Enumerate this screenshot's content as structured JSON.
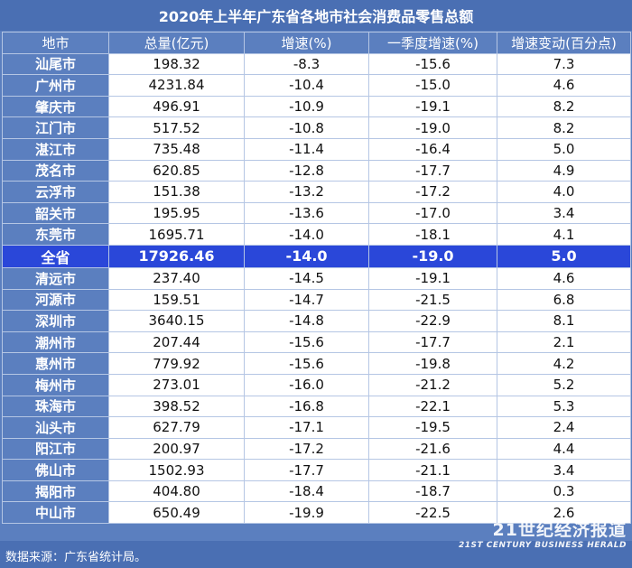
{
  "title": "2020年上半年广东省各地市社会消费品零售总额",
  "columns": [
    "地市",
    "总量(亿元)",
    "增速(%)",
    "一季度增速(%)",
    "增速变动(百分点)"
  ],
  "rows": [
    [
      "汕尾市",
      "198.32",
      "-8.3",
      "-15.6",
      "7.3"
    ],
    [
      "广州市",
      "4231.84",
      "-10.4",
      "-15.0",
      "4.6"
    ],
    [
      "肇庆市",
      "496.91",
      "-10.9",
      "-19.1",
      "8.2"
    ],
    [
      "江门市",
      "517.52",
      "-10.8",
      "-19.0",
      "8.2"
    ],
    [
      "湛江市",
      "735.48",
      "-11.4",
      "-16.4",
      "5.0"
    ],
    [
      "茂名市",
      "620.85",
      "-12.8",
      "-17.7",
      "4.9"
    ],
    [
      "云浮市",
      "151.38",
      "-13.2",
      "-17.2",
      "4.0"
    ],
    [
      "韶关市",
      "195.95",
      "-13.6",
      "-17.0",
      "3.4"
    ],
    [
      "东莞市",
      "1695.71",
      "-14.0",
      "-18.1",
      "4.1"
    ],
    [
      "全省",
      "17926.46",
      "-14.0",
      "-19.0",
      "5.0"
    ],
    [
      "清远市",
      "237.40",
      "-14.5",
      "-19.1",
      "4.6"
    ],
    [
      "河源市",
      "159.51",
      "-14.7",
      "-21.5",
      "6.8"
    ],
    [
      "深圳市",
      "3640.15",
      "-14.8",
      "-22.9",
      "8.1"
    ],
    [
      "潮州市",
      "207.44",
      "-15.6",
      "-17.7",
      "2.1"
    ],
    [
      "惠州市",
      "779.92",
      "-15.6",
      "-19.8",
      "4.2"
    ],
    [
      "梅州市",
      "273.01",
      "-16.0",
      "-21.2",
      "5.2"
    ],
    [
      "珠海市",
      "398.52",
      "-16.8",
      "-22.1",
      "5.3"
    ],
    [
      "汕头市",
      "627.79",
      "-17.1",
      "-19.5",
      "2.4"
    ],
    [
      "阳江市",
      "200.97",
      "-17.2",
      "-21.6",
      "4.4"
    ],
    [
      "佛山市",
      "1502.93",
      "-17.7",
      "-21.1",
      "3.4"
    ],
    [
      "揭阳市",
      "404.80",
      "-18.4",
      "-18.7",
      "0.3"
    ],
    [
      "中山市",
      "650.49",
      "-19.9",
      "-22.5",
      "2.6"
    ]
  ],
  "highlight_row": "全省",
  "source": "数据来源：广东省统计局。",
  "logo": {
    "main": "21世纪经济报道",
    "sub": "21ST CENTURY BUSINESS HERALD"
  },
  "colors": {
    "header": "#5b7fbf",
    "title_bar": "#4a6fb3",
    "highlight": "#2a47d9"
  }
}
